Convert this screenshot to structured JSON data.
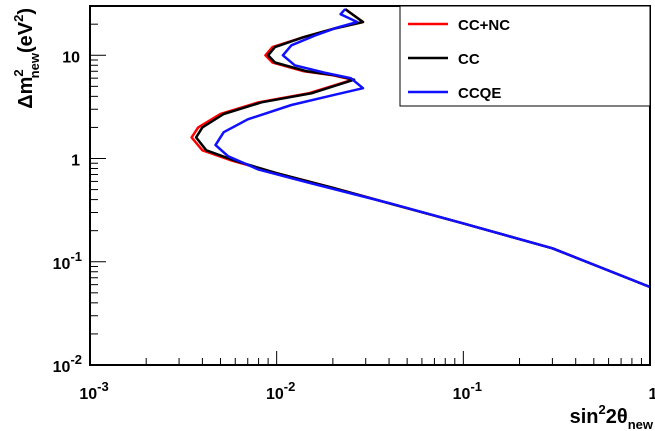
{
  "chart_data": {
    "type": "line",
    "title": "",
    "x_axis": {
      "scale": "log",
      "range": [
        0.001,
        1
      ],
      "label_parts": [
        "sin",
        "2",
        "2θ",
        "new"
      ],
      "ticks": [
        {
          "value": 0.001,
          "base": "10",
          "exp": "-3"
        },
        {
          "value": 0.01,
          "base": "10",
          "exp": "-2"
        },
        {
          "value": 0.1,
          "base": "10",
          "exp": "-1"
        },
        {
          "value": 1,
          "base": "1",
          "exp": ""
        }
      ]
    },
    "y_axis": {
      "scale": "log",
      "range": [
        0.01,
        30
      ],
      "label_parts": [
        "Δm",
        "2",
        "new",
        "(eV",
        "2",
        ")"
      ],
      "ticks": [
        {
          "value": 0.01,
          "base": "10",
          "exp": "-2"
        },
        {
          "value": 0.1,
          "base": "10",
          "exp": "-1"
        },
        {
          "value": 1,
          "base": "1",
          "exp": ""
        },
        {
          "value": 10,
          "base": "10",
          "exp": ""
        }
      ]
    },
    "grid": false,
    "legend_position": "top-right",
    "series": [
      {
        "name": "CC+NC",
        "color": "#ff0000",
        "points": [
          [
            0.0233,
            28.0
          ],
          [
            0.029,
            21.0
          ],
          [
            0.02,
            18.0
          ],
          [
            0.014,
            15.0
          ],
          [
            0.0095,
            12.0
          ],
          [
            0.0087,
            10.0
          ],
          [
            0.0095,
            8.5
          ],
          [
            0.014,
            7.0
          ],
          [
            0.02,
            6.4
          ],
          [
            0.0255,
            5.8
          ],
          [
            0.015,
            4.3
          ],
          [
            0.008,
            3.5
          ],
          [
            0.005,
            2.7
          ],
          [
            0.0038,
            2.0
          ],
          [
            0.0035,
            1.6
          ],
          [
            0.004,
            1.2
          ],
          [
            0.0058,
            0.95
          ],
          [
            0.01,
            0.72
          ],
          [
            0.02,
            0.52
          ],
          [
            0.05,
            0.33
          ],
          [
            0.1,
            0.235
          ],
          [
            0.3,
            0.135
          ],
          [
            1.0,
            0.057
          ]
        ]
      },
      {
        "name": "CC",
        "color": "#000000",
        "points": [
          [
            0.0233,
            28.0
          ],
          [
            0.029,
            21.0
          ],
          [
            0.02,
            18.0
          ],
          [
            0.014,
            15.0
          ],
          [
            0.0098,
            12.0
          ],
          [
            0.009,
            10.0
          ],
          [
            0.0098,
            8.5
          ],
          [
            0.0145,
            7.0
          ],
          [
            0.0205,
            6.4
          ],
          [
            0.026,
            5.8
          ],
          [
            0.0155,
            4.3
          ],
          [
            0.0083,
            3.5
          ],
          [
            0.0052,
            2.7
          ],
          [
            0.004,
            2.0
          ],
          [
            0.0037,
            1.6
          ],
          [
            0.0042,
            1.2
          ],
          [
            0.006,
            0.95
          ],
          [
            0.01,
            0.72
          ],
          [
            0.02,
            0.52
          ],
          [
            0.05,
            0.33
          ],
          [
            0.1,
            0.235
          ],
          [
            0.3,
            0.135
          ],
          [
            1.0,
            0.057
          ]
        ]
      },
      {
        "name": "CCQE",
        "color": "#1010ff",
        "points": [
          [
            0.0233,
            28.0
          ],
          [
            0.022,
            25.0
          ],
          [
            0.027,
            21.0
          ],
          [
            0.021,
            18.5
          ],
          [
            0.016,
            15.5
          ],
          [
            0.012,
            12.5
          ],
          [
            0.0108,
            10.0
          ],
          [
            0.0125,
            8.0
          ],
          [
            0.018,
            6.8
          ],
          [
            0.025,
            6.0
          ],
          [
            0.029,
            4.8
          ],
          [
            0.02,
            4.1
          ],
          [
            0.012,
            3.3
          ],
          [
            0.007,
            2.4
          ],
          [
            0.0052,
            1.8
          ],
          [
            0.0047,
            1.35
          ],
          [
            0.0055,
            1.05
          ],
          [
            0.008,
            0.78
          ],
          [
            0.015,
            0.58
          ],
          [
            0.04,
            0.37
          ],
          [
            0.1,
            0.235
          ],
          [
            0.3,
            0.135
          ],
          [
            1.0,
            0.057
          ]
        ]
      }
    ]
  }
}
